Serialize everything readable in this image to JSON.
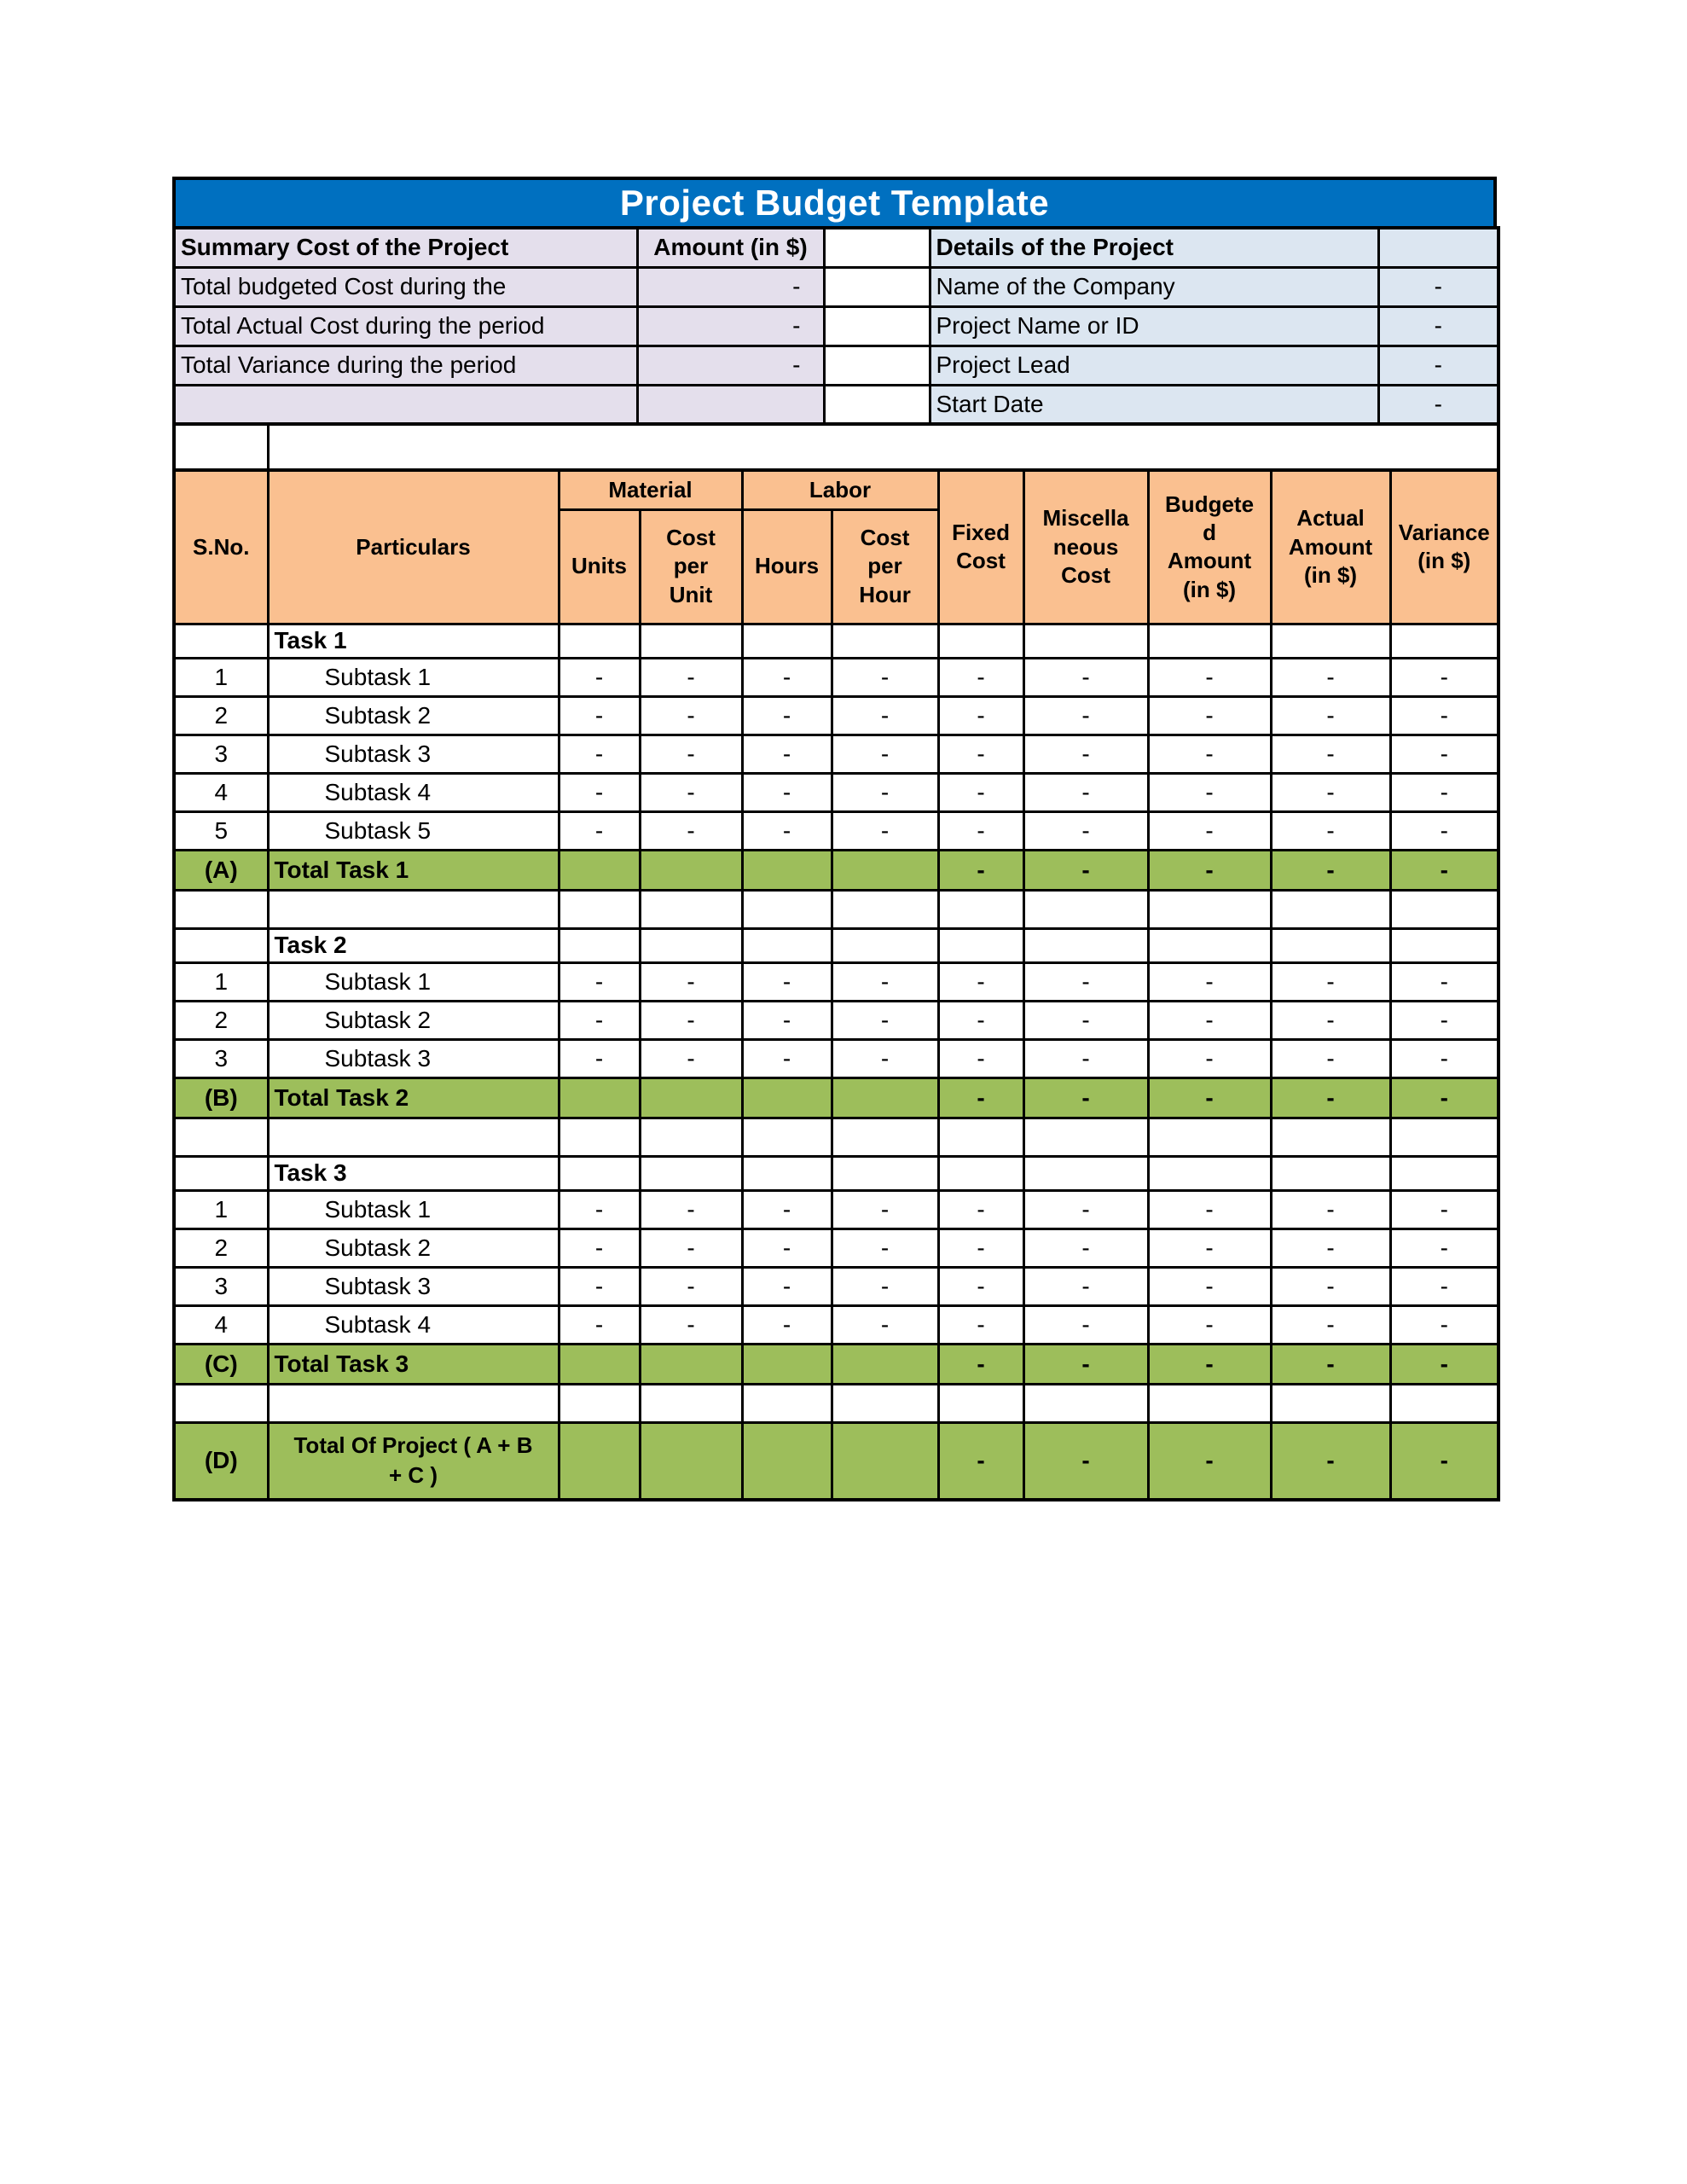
{
  "title": "Project Budget Template",
  "colors": {
    "page_bg": "#FFFFFF",
    "title_bar": "#0070C0",
    "title_text": "#FFFFFF",
    "summary_fill": "#E4DFEC",
    "details_fill": "#DCE6F1",
    "header_fill": "#FAC090",
    "total_fill": "#9DBE5B",
    "border": "#000000",
    "text": "#000000"
  },
  "summary": {
    "title": "Summary Cost of the Project",
    "amount_header": "Amount (in $)",
    "rows": [
      {
        "label": "Total budgeted Cost during the",
        "amount": "-"
      },
      {
        "label": "Total Actual Cost during the period",
        "amount": "-"
      },
      {
        "label": "Total Variance during the period",
        "amount": "-"
      },
      {
        "label": "",
        "amount": ""
      }
    ]
  },
  "details": {
    "title": "Details of the Project",
    "rows": [
      {
        "label": "Name of the Company",
        "value": "-"
      },
      {
        "label": "Project Name or ID",
        "value": "-"
      },
      {
        "label": "Project Lead",
        "value": "-"
      },
      {
        "label": "Start Date",
        "value": "-"
      }
    ]
  },
  "main_table": {
    "headers": {
      "sno": "S.No.",
      "particulars": "Particulars",
      "material": "Material",
      "labor": "Labor",
      "units": "Units",
      "cost_per_unit": "Cost\nper\nUnit",
      "hours": "Hours",
      "cost_per_hour": "Cost\nper\nHour",
      "fixed_cost": "Fixed\nCost",
      "miscellaneous_cost": "Miscella\nneous\nCost",
      "budgeted_amount": "Budgete\nd\nAmount\n(in $)",
      "actual_amount": "Actual\nAmount\n(in $)",
      "variance": "Variance\n(in $)"
    },
    "column_keys": [
      "units",
      "cost_per_unit",
      "hours",
      "cost_per_hour",
      "fixed_cost",
      "miscellaneous_cost",
      "budgeted_amount",
      "actual_amount",
      "variance"
    ],
    "sections": [
      {
        "task_label": "Task 1",
        "subtasks": [
          {
            "sno": "1",
            "label": "Subtask 1",
            "values": [
              "-",
              "-",
              "-",
              "-",
              "-",
              "-",
              "-",
              "-",
              "-"
            ]
          },
          {
            "sno": "2",
            "label": "Subtask 2",
            "values": [
              "-",
              "-",
              "-",
              "-",
              "-",
              "-",
              "-",
              "-",
              "-"
            ]
          },
          {
            "sno": "3",
            "label": "Subtask 3",
            "values": [
              "-",
              "-",
              "-",
              "-",
              "-",
              "-",
              "-",
              "-",
              "-"
            ]
          },
          {
            "sno": "4",
            "label": "Subtask 4",
            "values": [
              "-",
              "-",
              "-",
              "-",
              "-",
              "-",
              "-",
              "-",
              "-"
            ]
          },
          {
            "sno": "5",
            "label": "Subtask 5",
            "values": [
              "-",
              "-",
              "-",
              "-",
              "-",
              "-",
              "-",
              "-",
              "-"
            ]
          }
        ],
        "total": {
          "sno": "(A)",
          "label": "Total Task 1",
          "values": [
            "",
            "",
            "",
            "",
            "-",
            "-",
            "-",
            "-",
            "-"
          ]
        }
      },
      {
        "task_label": "Task 2",
        "subtasks": [
          {
            "sno": "1",
            "label": "Subtask 1",
            "values": [
              "-",
              "-",
              "-",
              "-",
              "-",
              "-",
              "-",
              "-",
              "-"
            ]
          },
          {
            "sno": "2",
            "label": "Subtask 2",
            "values": [
              "-",
              "-",
              "-",
              "-",
              "-",
              "-",
              "-",
              "-",
              "-"
            ]
          },
          {
            "sno": "3",
            "label": "Subtask 3",
            "values": [
              "-",
              "-",
              "-",
              "-",
              "-",
              "-",
              "-",
              "-",
              "-"
            ]
          }
        ],
        "total": {
          "sno": "(B)",
          "label": "Total Task 2",
          "values": [
            "",
            "",
            "",
            "",
            "-",
            "-",
            "-",
            "-",
            "-"
          ]
        }
      },
      {
        "task_label": "Task 3",
        "subtasks": [
          {
            "sno": "1",
            "label": "Subtask 1",
            "values": [
              "-",
              "-",
              "-",
              "-",
              "-",
              "-",
              "-",
              "-",
              "-"
            ]
          },
          {
            "sno": "2",
            "label": "Subtask 2",
            "values": [
              "-",
              "-",
              "-",
              "-",
              "-",
              "-",
              "-",
              "-",
              "-"
            ]
          },
          {
            "sno": "3",
            "label": "Subtask 3",
            "values": [
              "-",
              "-",
              "-",
              "-",
              "-",
              "-",
              "-",
              "-",
              "-"
            ]
          },
          {
            "sno": "4",
            "label": "Subtask 4",
            "values": [
              "-",
              "-",
              "-",
              "-",
              "-",
              "-",
              "-",
              "-",
              "-"
            ]
          }
        ],
        "total": {
          "sno": "(C)",
          "label": "Total Task 3",
          "values": [
            "",
            "",
            "",
            "",
            "-",
            "-",
            "-",
            "-",
            "-"
          ]
        }
      }
    ],
    "grand_total": {
      "sno": "(D)",
      "label": "Total Of Project ( A + B\n+ C )",
      "values": [
        "",
        "",
        "",
        "",
        "-",
        "-",
        "-",
        "-",
        "-"
      ]
    }
  }
}
